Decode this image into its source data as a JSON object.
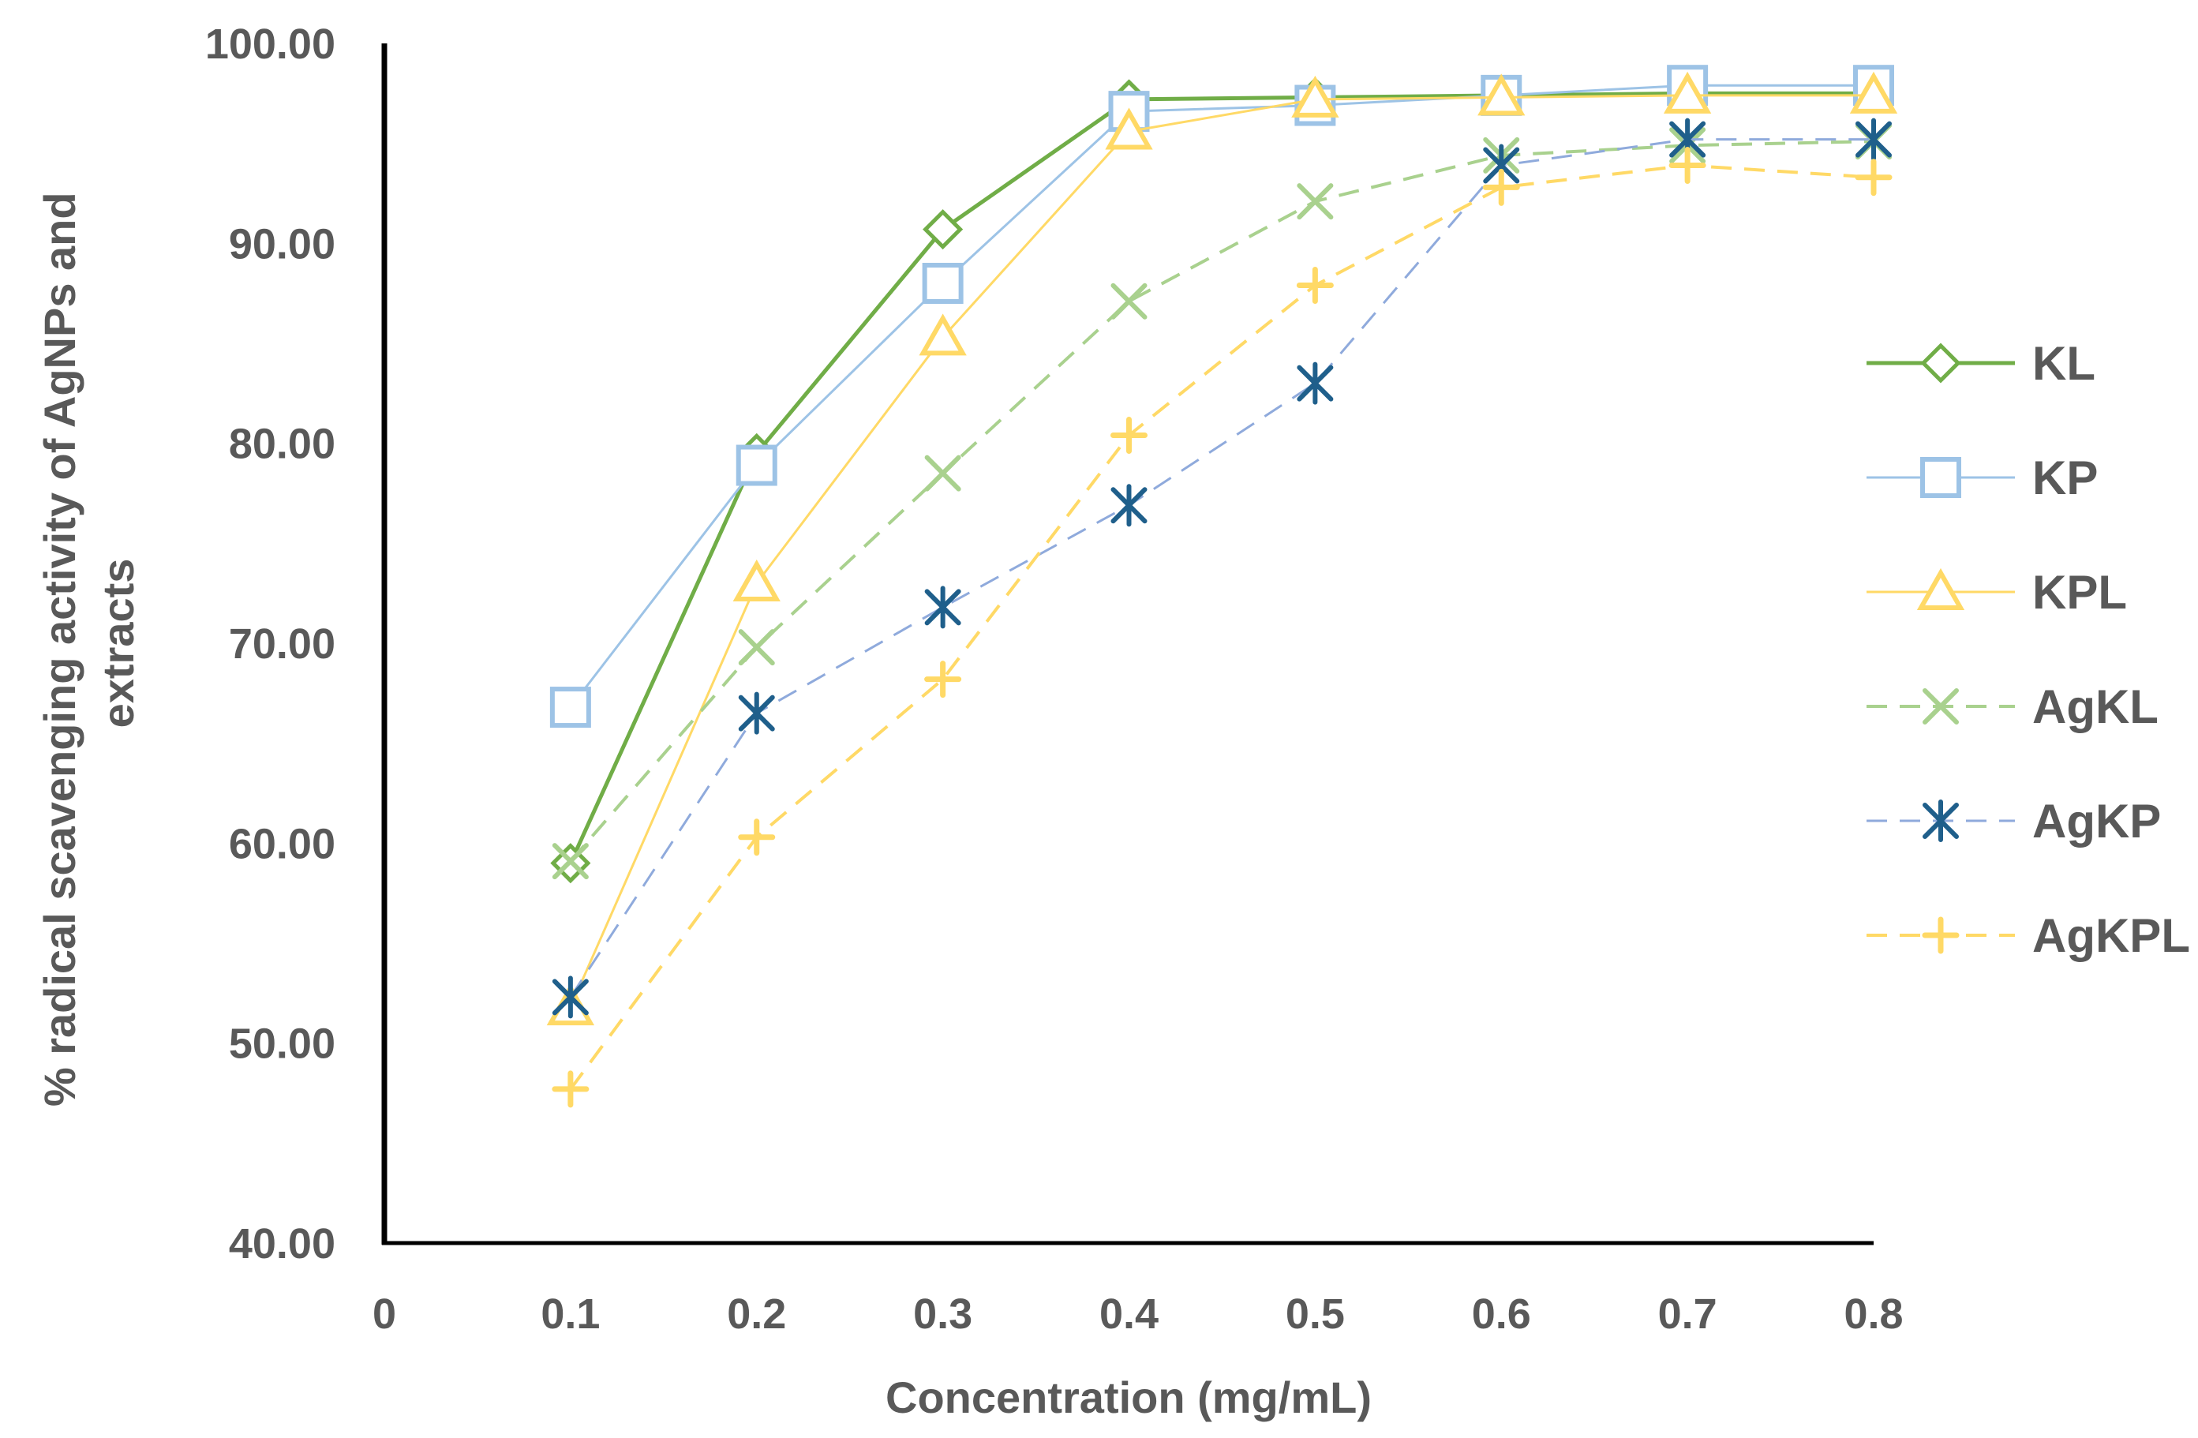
{
  "chart_data": {
    "type": "line",
    "title": "",
    "xlabel": "Concentration (mg/mL)",
    "ylabel": [
      "% radical scavenging activity of AgNPs and",
      "extracts"
    ],
    "x_ticks": [
      "0",
      "0.1",
      "0.2",
      "0.3",
      "0.4",
      "0.5",
      "0.6",
      "0.7",
      "0.8"
    ],
    "y_ticks": [
      "40.00",
      "50.00",
      "60.00",
      "70.00",
      "80.00",
      "90.00",
      "100.00"
    ],
    "xlim": [
      0,
      0.8
    ],
    "ylim": [
      40,
      100
    ],
    "x": [
      0.1,
      0.2,
      0.3,
      0.4,
      0.5,
      0.6,
      0.7,
      0.8
    ],
    "legend_position": "right",
    "series": [
      {
        "name": "KL",
        "values": [
          59.0,
          79.5,
          90.7,
          97.2,
          97.3,
          97.4,
          97.5,
          97.5
        ],
        "color": "#70ad47",
        "marker": "diamond",
        "dash": false,
        "width": 5
      },
      {
        "name": "KP",
        "values": [
          66.8,
          78.9,
          88.0,
          96.6,
          96.9,
          97.4,
          97.9,
          97.9
        ],
        "color": "#9dc3e6",
        "marker": "square",
        "dash": false,
        "width": 3
      },
      {
        "name": "KPL",
        "values": [
          51.8,
          73.0,
          85.3,
          95.6,
          97.2,
          97.3,
          97.4,
          97.4
        ],
        "color": "#ffd966",
        "marker": "triangle",
        "dash": false,
        "width": 3
      },
      {
        "name": "AgKL",
        "values": [
          59.1,
          69.8,
          78.5,
          87.1,
          92.1,
          94.4,
          94.9,
          95.1
        ],
        "color": "#a9d18e",
        "marker": "x",
        "dash": true,
        "width": 4
      },
      {
        "name": "AgKP",
        "values": [
          52.3,
          66.5,
          71.8,
          76.9,
          83.0,
          93.9,
          95.2,
          95.2
        ],
        "color": "#8faadc",
        "marker": "asterisk",
        "dash": true,
        "width": 3
      },
      {
        "name": "AgKPL",
        "values": [
          47.7,
          60.3,
          68.2,
          80.4,
          87.9,
          92.8,
          93.9,
          93.3
        ],
        "color": "#ffd966",
        "marker": "plus",
        "dash": true,
        "width": 4
      }
    ]
  }
}
